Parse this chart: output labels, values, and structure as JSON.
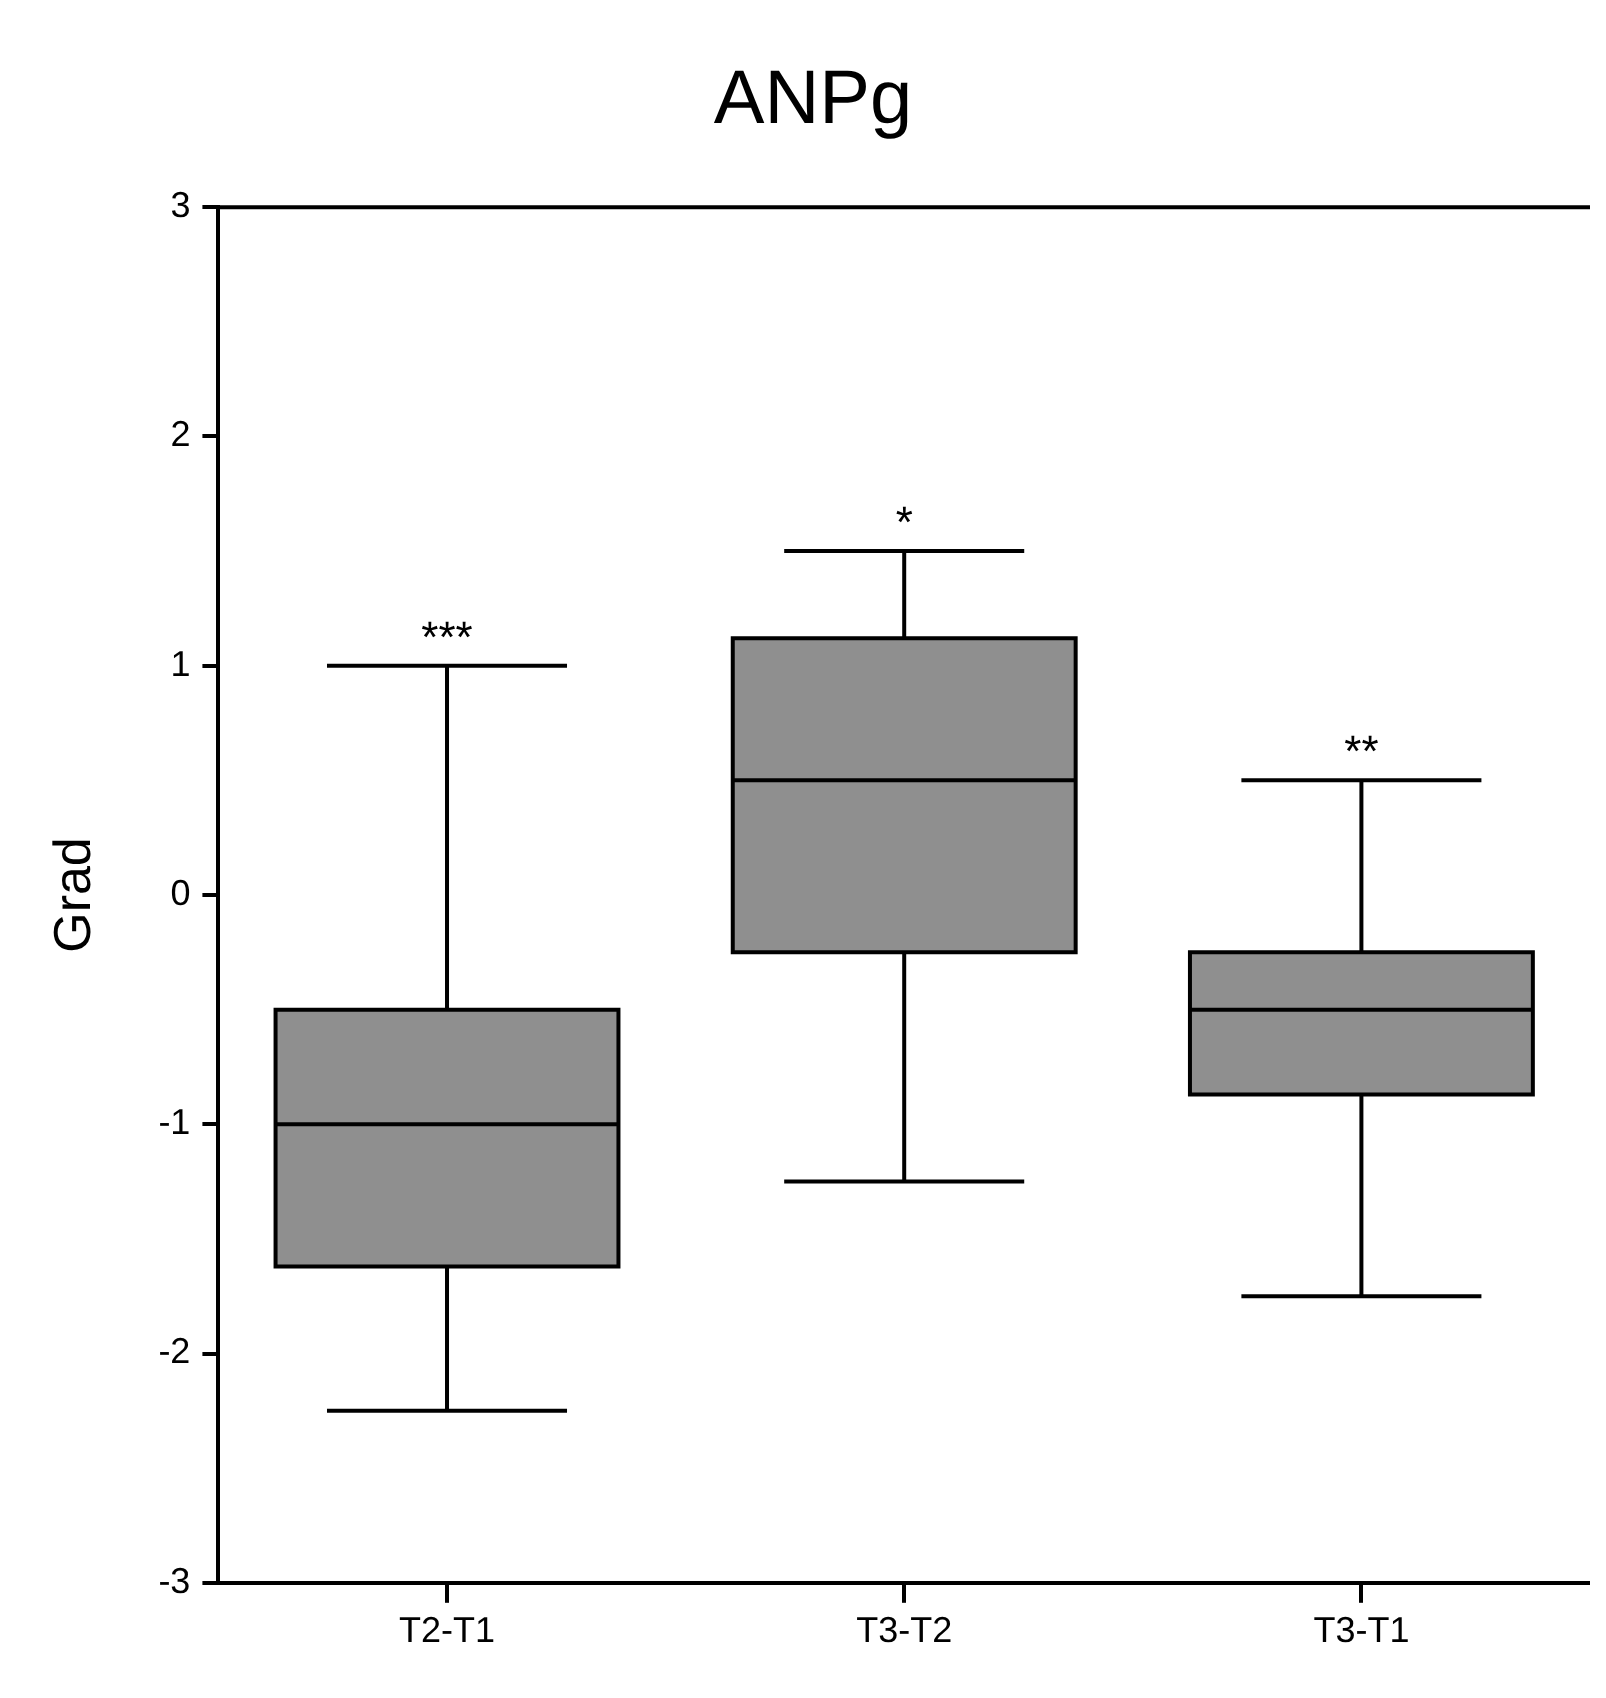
{
  "chart_data": {
    "type": "box",
    "title": "ANPg",
    "ylabel": "Grad",
    "categories": [
      "T2-T1",
      "T3-T2",
      "T3-T1"
    ],
    "color": "#8f8f8f",
    "boxes": [
      {
        "low": -2.25,
        "q1": -1.62,
        "median": -1,
        "q3": -0.5,
        "high": 1
      },
      {
        "low": -1.25,
        "q1": -0.25,
        "median": 0.5,
        "q3": 1.12,
        "high": 1.5
      },
      {
        "low": -1.75,
        "q1": -0.87,
        "median": -0.5,
        "q3": -0.25,
        "high": 0.5
      }
    ],
    "ylim": [
      -3,
      3
    ],
    "yticks": [
      -3,
      -2,
      -1,
      0,
      1,
      2,
      3
    ],
    "grid": false,
    "legend": false,
    "annotations": [
      {
        "text": "***",
        "x": "T2-T1",
        "y": 1
      },
      {
        "text": "*",
        "x": "T3-T2",
        "y": 1.5
      },
      {
        "text": "**",
        "x": "T3-T1",
        "y": 0.5
      }
    ]
  }
}
